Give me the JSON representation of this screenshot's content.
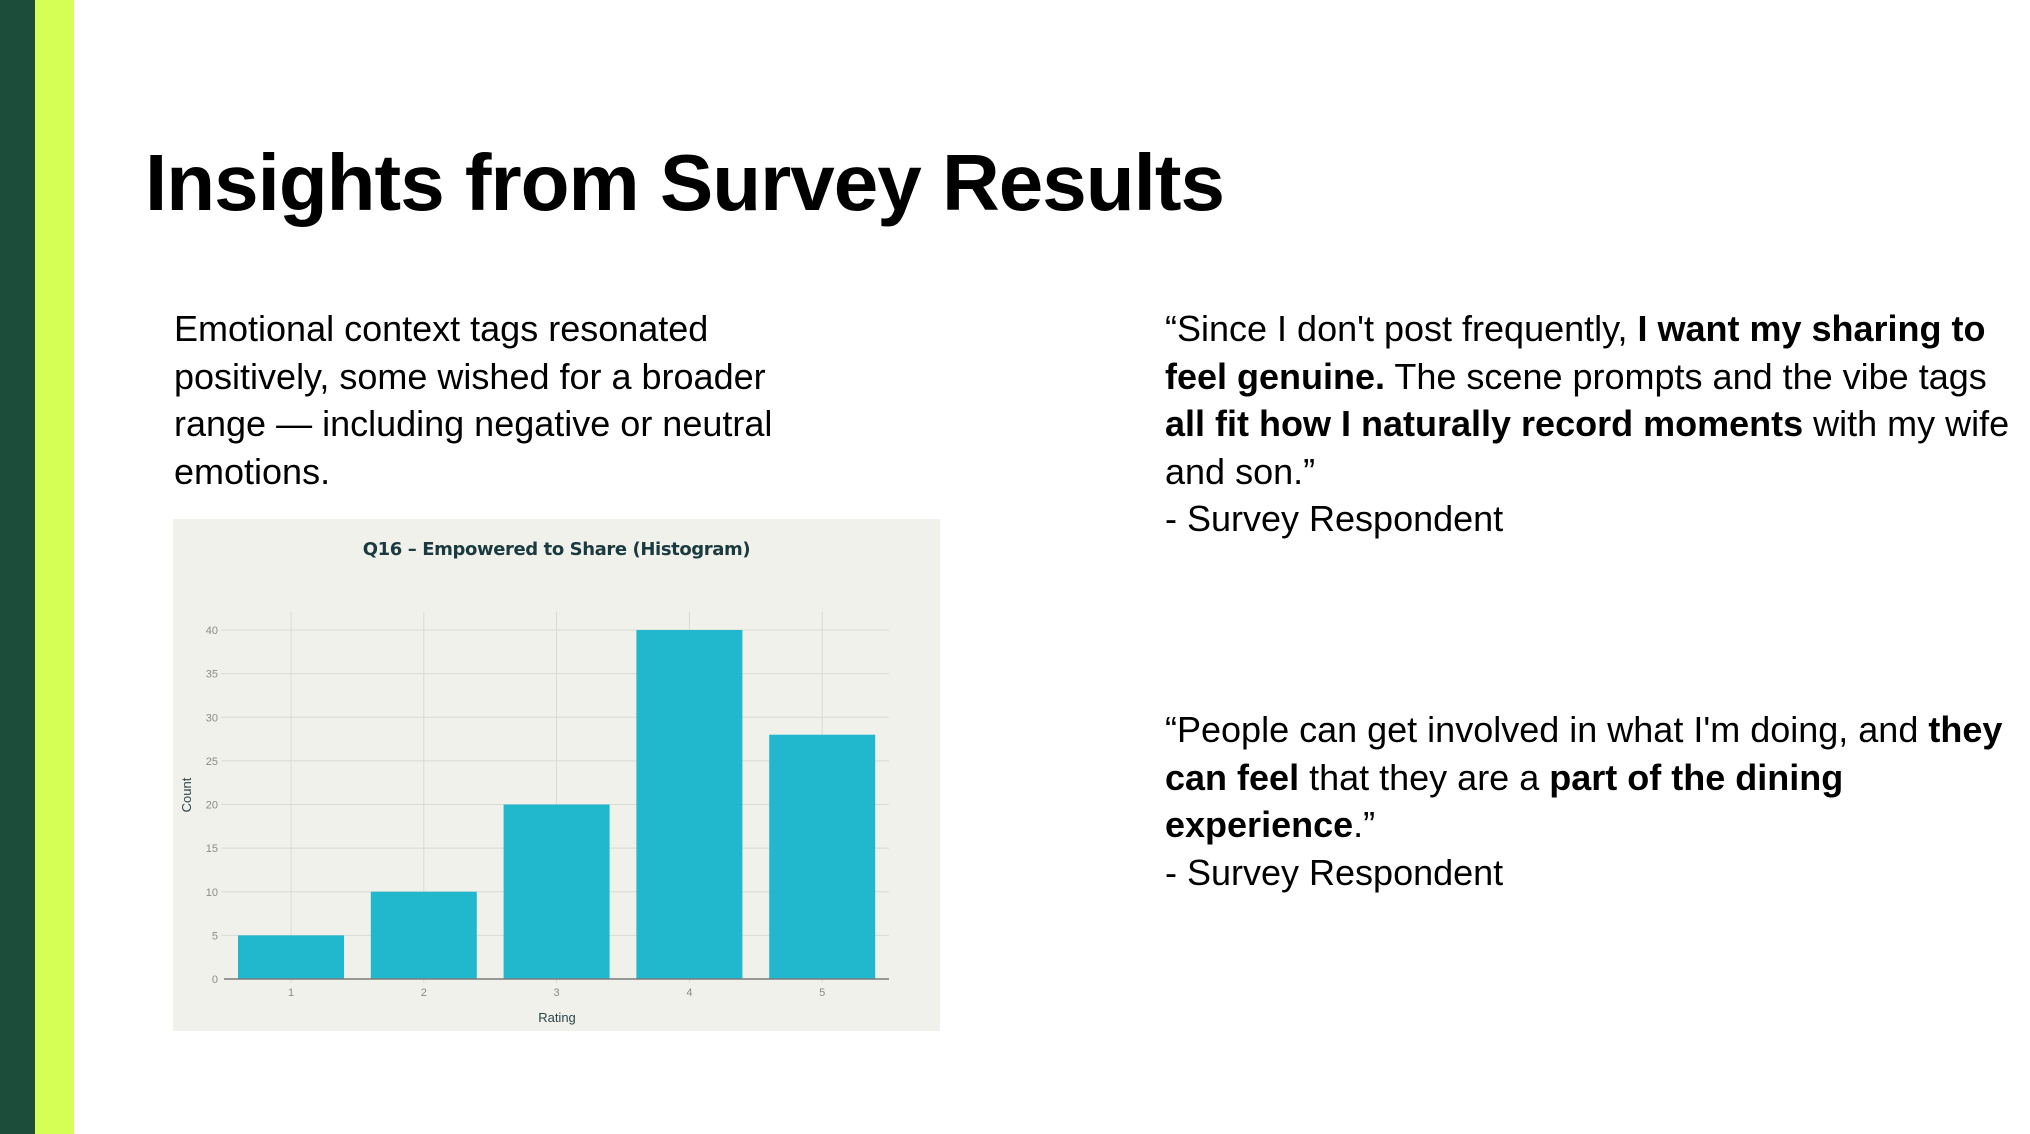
{
  "slide": {
    "title": "Insights from Survey Results",
    "colors": {
      "accent_dark": "#1B4D3A",
      "accent_lime": "#D6FF55",
      "bar": "#21B8CD",
      "chart_bg": "#F1F1EC"
    }
  },
  "left": {
    "summary": "Emotional context tags resonated positively, some wished for a broader range — including negative or neutral emotions."
  },
  "quotes": [
    {
      "segments": [
        {
          "text": "“Since I don't post frequently, ",
          "bold": false
        },
        {
          "text": "I want my sharing to feel genuine.",
          "bold": true
        },
        {
          "text": " The scene prompts and the vibe tags ",
          "bold": false
        },
        {
          "text": "all fit how I naturally record moments",
          "bold": true
        },
        {
          "text": " with my wife and son.”",
          "bold": false
        }
      ],
      "attribution": "- Survey Respondent"
    },
    {
      "segments": [
        {
          "text": "“People can get involved in what I'm doing, and ",
          "bold": false
        },
        {
          "text": "they can feel",
          "bold": true
        },
        {
          "text": " that they are a ",
          "bold": false
        },
        {
          "text": "part of the dining experience",
          "bold": true
        },
        {
          "text": ".”",
          "bold": false
        }
      ],
      "attribution": "- Survey Respondent"
    }
  ],
  "chart_data": {
    "type": "bar",
    "title": "Q16 – Empowered to Share (Histogram)",
    "categories": [
      "1",
      "2",
      "3",
      "4",
      "5"
    ],
    "values": [
      5,
      10,
      20,
      40,
      28
    ],
    "xlabel": "Rating",
    "ylabel": "Count",
    "ylim": [
      0,
      40
    ],
    "yticks": [
      0,
      5,
      10,
      15,
      20,
      25,
      30,
      35,
      40
    ],
    "grid": true,
    "legend": "none"
  }
}
